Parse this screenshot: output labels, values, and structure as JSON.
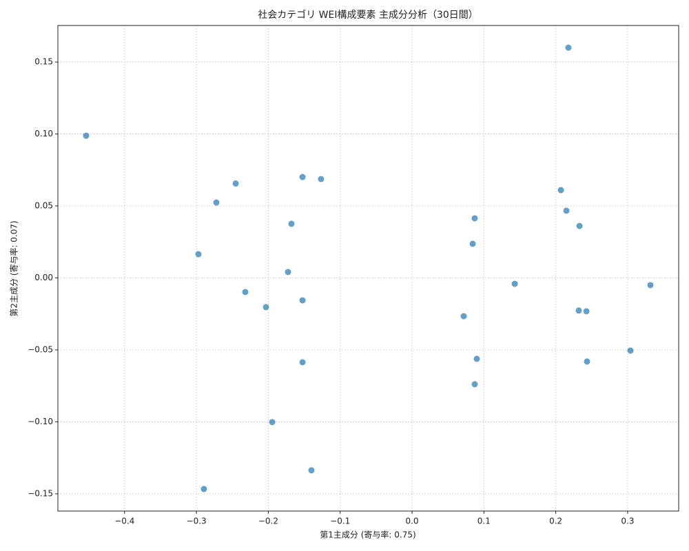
{
  "chart_data": {
    "type": "scatter",
    "title": "社会カテゴリ WEI構成要素 主成分分析（30日間）",
    "x_label": "第1主成分 (寄与率: 0.75)",
    "y_label": "第2主成分 (寄与率: 0.07)",
    "x": [
      -0.4535,
      0.2176,
      -0.2454,
      -0.2723,
      -0.1524,
      -0.1266,
      -0.1678,
      -0.2972,
      -0.1726,
      -0.232,
      -0.2033,
      -0.1524,
      -0.1524,
      -0.1946,
      -0.14,
      -0.2896,
      0.2071,
      0.2148,
      0.233,
      0.0872,
      0.0844,
      0.1429,
      0.3317,
      0.232,
      0.2426,
      0.0719,
      0.0901,
      0.2435,
      0.3039,
      0.0872
    ],
    "series": [
      {
        "color": "#1f77b4",
        "values": [
          0.0988,
          0.16,
          0.0656,
          0.0524,
          0.0701,
          0.0687,
          0.0376,
          0.0165,
          0.0041,
          -0.0098,
          -0.0203,
          -0.0156,
          -0.0586,
          -0.1002,
          -0.1337,
          -0.1467,
          0.061,
          0.0467,
          0.0361,
          0.0414,
          0.0237,
          -0.0041,
          -0.005,
          -0.0227,
          -0.0232,
          -0.0266,
          -0.0562,
          -0.0581,
          -0.0505,
          -0.0739
        ]
      }
    ],
    "xlim": [
      -0.4928,
      0.371
    ],
    "ylim": [
      -0.162,
      0.1754
    ],
    "xticks": [
      {
        "value": -0.4,
        "label": "−0.4"
      },
      {
        "value": -0.3,
        "label": "−0.3"
      },
      {
        "value": -0.2,
        "label": "−0.2"
      },
      {
        "value": -0.1,
        "label": "−0.1"
      },
      {
        "value": 0,
        "label": "0.0"
      },
      0.1,
      0.2,
      0.3
    ],
    "yticks": [
      {
        "value": -0.15,
        "label": "−0.15"
      },
      {
        "value": -0.1,
        "label": "−0.10"
      },
      {
        "value": -0.05,
        "label": "−0.05"
      },
      {
        "value": 0,
        "label": "0.00"
      },
      0.05,
      {
        "value": 0.1,
        "label": "0.10"
      },
      0.15
    ],
    "grid": true
  }
}
